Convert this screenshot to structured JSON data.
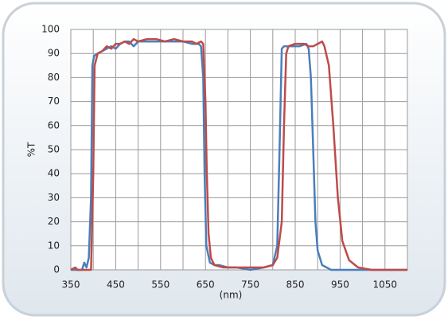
{
  "chart_data": {
    "type": "line",
    "x_label": "(nm)",
    "y_label": "%T",
    "xlim": [
      350,
      1100
    ],
    "ylim": [
      0,
      100
    ],
    "xticks": [
      350,
      450,
      550,
      650,
      750,
      850,
      950,
      1050
    ],
    "yticks": [
      0,
      10,
      20,
      30,
      40,
      50,
      60,
      70,
      80,
      90,
      100
    ],
    "grid": true,
    "series": [
      {
        "color": "#4a7ebb",
        "x": [
          350,
          375,
          380,
          385,
          390,
          395,
          398,
          402,
          410,
          420,
          430,
          440,
          450,
          460,
          470,
          480,
          490,
          500,
          520,
          540,
          560,
          580,
          600,
          620,
          635,
          640,
          645,
          648,
          652,
          660,
          670,
          680,
          700,
          720,
          750,
          780,
          800,
          810,
          815,
          820,
          825,
          840,
          860,
          875,
          880,
          885,
          890,
          895,
          900,
          910,
          930,
          1100
        ],
        "values": [
          0,
          0,
          3,
          1,
          5,
          30,
          85,
          89,
          90,
          91,
          92,
          93,
          92,
          94,
          95,
          95,
          93,
          95,
          95,
          95,
          95,
          95,
          95,
          94,
          94,
          93,
          80,
          40,
          10,
          3,
          2,
          2,
          1,
          1,
          0,
          1,
          2,
          10,
          50,
          92,
          93,
          93,
          93,
          94,
          92,
          80,
          50,
          20,
          8,
          2,
          0,
          0
        ]
      },
      {
        "color": "#be4b48",
        "x": [
          350,
          360,
          365,
          380,
          395,
          400,
          403,
          410,
          420,
          430,
          440,
          450,
          460,
          470,
          480,
          490,
          500,
          520,
          540,
          560,
          580,
          600,
          620,
          630,
          640,
          645,
          650,
          653,
          657,
          662,
          670,
          690,
          700,
          720,
          750,
          780,
          800,
          810,
          820,
          825,
          830,
          835,
          850,
          870,
          880,
          890,
          900,
          910,
          915,
          925,
          935,
          945,
          955,
          970,
          990,
          1020,
          1100
        ],
        "values": [
          0,
          1,
          0,
          0,
          0,
          40,
          85,
          90,
          91,
          93,
          92,
          94,
          94,
          95,
          94,
          96,
          95,
          96,
          96,
          95,
          96,
          95,
          95,
          94,
          95,
          94,
          70,
          40,
          15,
          5,
          2,
          1,
          1,
          1,
          1,
          1,
          2,
          5,
          20,
          60,
          90,
          93,
          94,
          94,
          93,
          93,
          94,
          95,
          93,
          85,
          60,
          30,
          12,
          4,
          1,
          0,
          0
        ]
      }
    ]
  }
}
